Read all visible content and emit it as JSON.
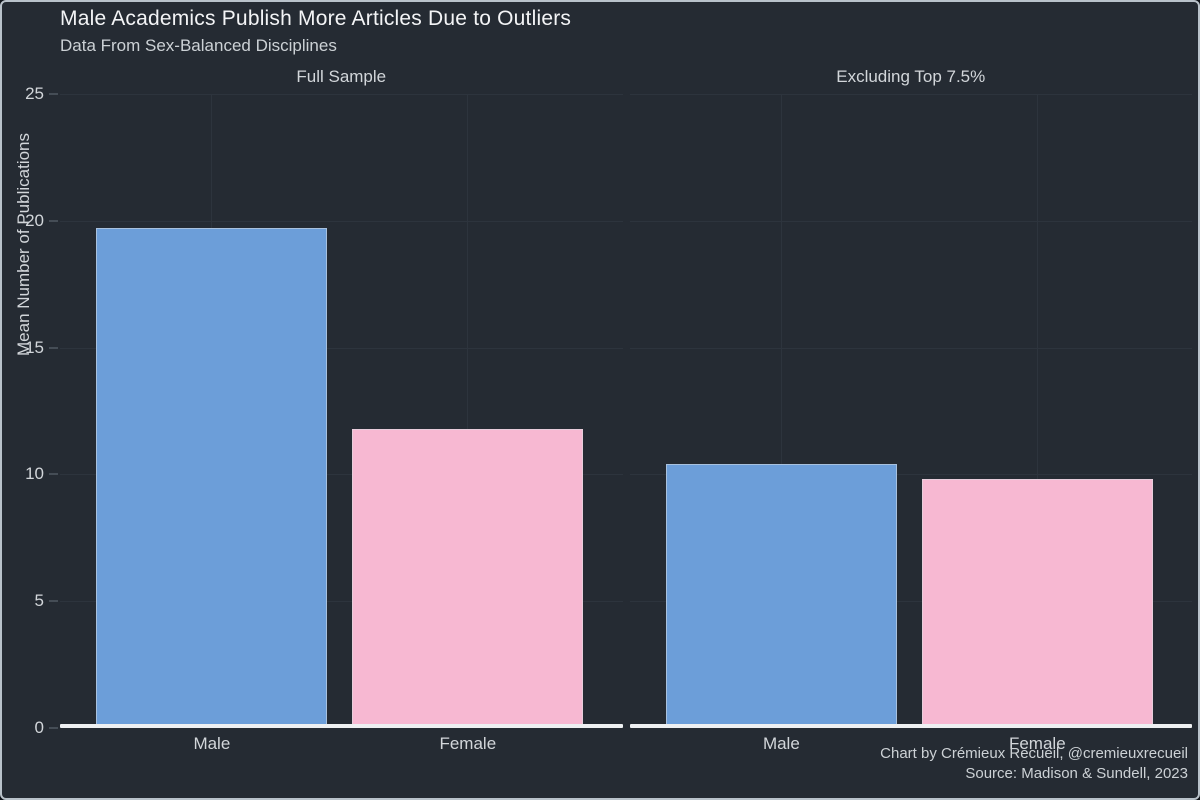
{
  "header": {
    "title": "Male Academics Publish More Articles Due to Outliers",
    "subtitle": "Data From Sex-Balanced Disciplines"
  },
  "footer": {
    "credit": "Chart by Crémieux Recueil, @cremieuxrecueil",
    "source": "Source: Madison & Sundell, 2023"
  },
  "colors": {
    "background": "#252b33",
    "gridline": "#2d343d",
    "axis_line": "#eef0f2",
    "title_text": "#f3f4f6",
    "muted_text": "#d2d6da",
    "male_bar": "#6c9ed9",
    "female_bar": "#f7b8d2"
  },
  "chart_data": {
    "type": "bar",
    "title": "Male Academics Publish More Articles Due to Outliers",
    "subtitle": "Data From Sex-Balanced Disciplines",
    "xlabel": "",
    "ylabel": "Mean Number of Publications",
    "ylim": [
      0,
      25
    ],
    "yticks": [
      0,
      5,
      10,
      15,
      20,
      25
    ],
    "grid": true,
    "legend": "none",
    "facets": "two side-by-side panels sharing the y axis",
    "panels": [
      {
        "title": "Full Sample",
        "categories": [
          "Male",
          "Female"
        ],
        "values": [
          19.7,
          11.8
        ]
      },
      {
        "title": "Excluding Top 7.5%",
        "categories": [
          "Male",
          "Female"
        ],
        "values": [
          10.4,
          9.8
        ]
      }
    ],
    "series_colors": {
      "Male": "#6c9ed9",
      "Female": "#f7b8d2"
    },
    "caption": [
      "Chart by Crémieux Recueil, @cremieuxrecueil",
      "Source: Madison & Sundell, 2023"
    ]
  }
}
